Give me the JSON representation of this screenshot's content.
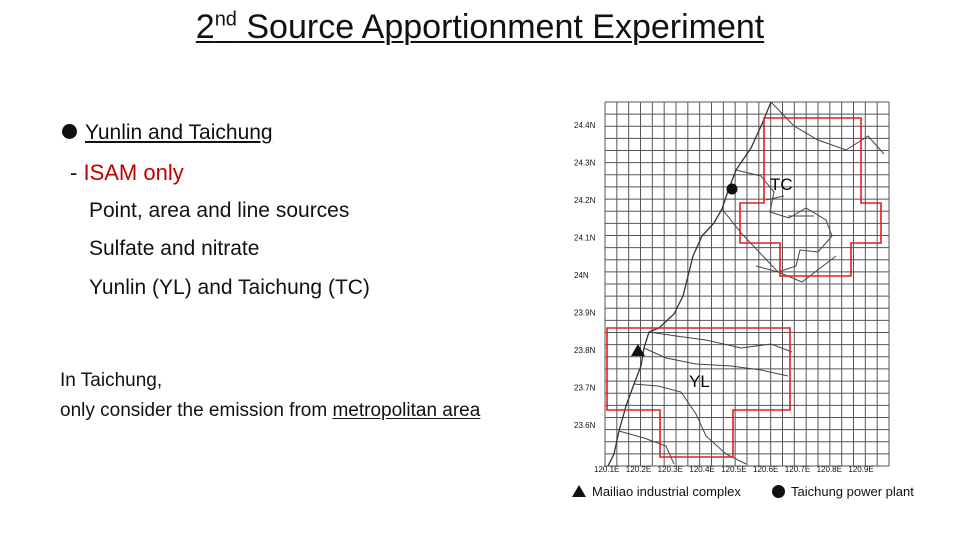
{
  "slide": {
    "title_prefix": "2",
    "title_superscript": "nd",
    "title_rest": " Source Apportionment Experiment"
  },
  "content": {
    "bullet": "Yunlin and Taichung",
    "sub_prefix": "- ",
    "sub_text": "ISAM only",
    "sources_point": "Point",
    "sources_sep1": ", ",
    "sources_area": "area",
    "sources_and": " and ",
    "sources_line": "line",
    "sources_suffix": " sources",
    "species": "Sulfate and nitrate",
    "regions": "Yunlin (YL) and Taichung (TC)",
    "note_line1": "In Taichung,",
    "note_line2_prefix": "only consider the emission from ",
    "note_line2_underlined": "metropolitan area"
  },
  "map": {
    "lat_labels": [
      "24.4N",
      "24.3N",
      "24.2N",
      "24.1N",
      "24N",
      "23.9N",
      "23.8N",
      "23.7N",
      "23.6N"
    ],
    "lon_labels": [
      "120.1E",
      "120.2E",
      "120.3E",
      "120.4E",
      "120.5E",
      "120.6E",
      "120.7E",
      "120.8E",
      "120.9E"
    ],
    "region_tc": "TC",
    "region_yl": "YL",
    "region_color": "#e02020",
    "marker_triangle_icon": "triangle-marker",
    "marker_circle_icon": "circle-marker"
  },
  "legend": {
    "triangle_label": "Mailiao industrial complex",
    "circle_label": "Taichung power plant"
  }
}
